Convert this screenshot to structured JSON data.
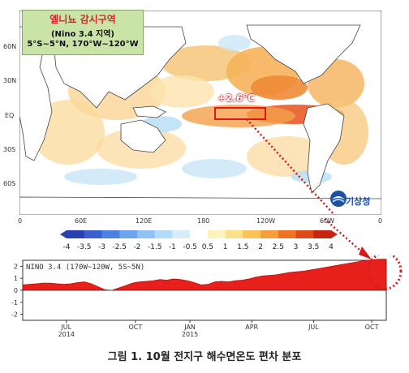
{
  "info_box": {
    "title": "엘니뇨 감시구역",
    "subtitle": "(Nino 3.4 지역)",
    "range": "5°S~5°N, 170°W~120°W"
  },
  "map": {
    "lat_labels": [
      "60N",
      "30N",
      "EQ",
      "30S",
      "60S"
    ],
    "lon_labels": [
      "0",
      "60E",
      "120E",
      "180",
      "120W",
      "60W",
      "0"
    ],
    "anomaly_label": "+2.6℃",
    "logo_text": "기상청",
    "colors": {
      "warm": "#f5b85a",
      "hot": "#e8501c",
      "cool": "#a9d7f2",
      "land": "#ffffff",
      "box": "#e01818"
    }
  },
  "colorbar": {
    "ticks": [
      "-4",
      "-3.5",
      "-3",
      "-2.5",
      "-2",
      "-1.5",
      "-1",
      "-0.5",
      "0.5",
      "1",
      "1.5",
      "2",
      "2.5",
      "3",
      "3.5",
      "4"
    ],
    "colors": [
      "#2a3fb0",
      "#3a60d0",
      "#4a82e4",
      "#6ea4ee",
      "#8fc2f4",
      "#b3dcf8",
      "#d6eefb",
      "#ffffff",
      "#fff4c0",
      "#fde08a",
      "#fbc25a",
      "#f59e3a",
      "#ee7424",
      "#e04a18",
      "#c82412"
    ]
  },
  "chart_data": {
    "type": "area",
    "title": "NINO 3.4 (170W~120W, 5S~5N)",
    "xlabel": "",
    "ylabel": "",
    "ylim": [
      -2.5,
      2.5
    ],
    "yticks": [
      "2",
      "1",
      "0",
      "-1",
      "-2"
    ],
    "xticks": [
      {
        "label": "JUL",
        "sub": "2014"
      },
      {
        "label": "OCT",
        "sub": ""
      },
      {
        "label": "JAN",
        "sub": "2015"
      },
      {
        "label": "APR",
        "sub": ""
      },
      {
        "label": "JUL",
        "sub": ""
      },
      {
        "label": "OCT",
        "sub": ""
      }
    ],
    "series": [
      {
        "values": [
          0.45,
          0.5,
          0.55,
          0.6,
          0.6,
          0.55,
          0.5,
          0.55,
          0.65,
          0.7,
          0.55,
          0.3,
          0.05,
          0.0,
          0.2,
          0.4,
          0.6,
          0.7,
          0.75,
          0.8,
          0.9,
          0.85,
          0.95,
          0.9,
          0.8,
          0.65,
          0.45,
          0.5,
          0.7,
          0.75,
          0.7,
          0.8,
          0.85,
          0.95,
          1.1,
          1.2,
          1.25,
          1.3,
          1.4,
          1.5,
          1.55,
          1.6,
          1.7,
          1.8,
          1.9,
          2.0,
          2.1,
          2.2,
          2.3,
          2.4,
          2.5,
          2.55,
          2.6,
          2.6
        ]
      }
    ],
    "fill_color": "#e8201c"
  },
  "caption": "그림 1. 10월 전지구 해수면온도 편차 분포"
}
